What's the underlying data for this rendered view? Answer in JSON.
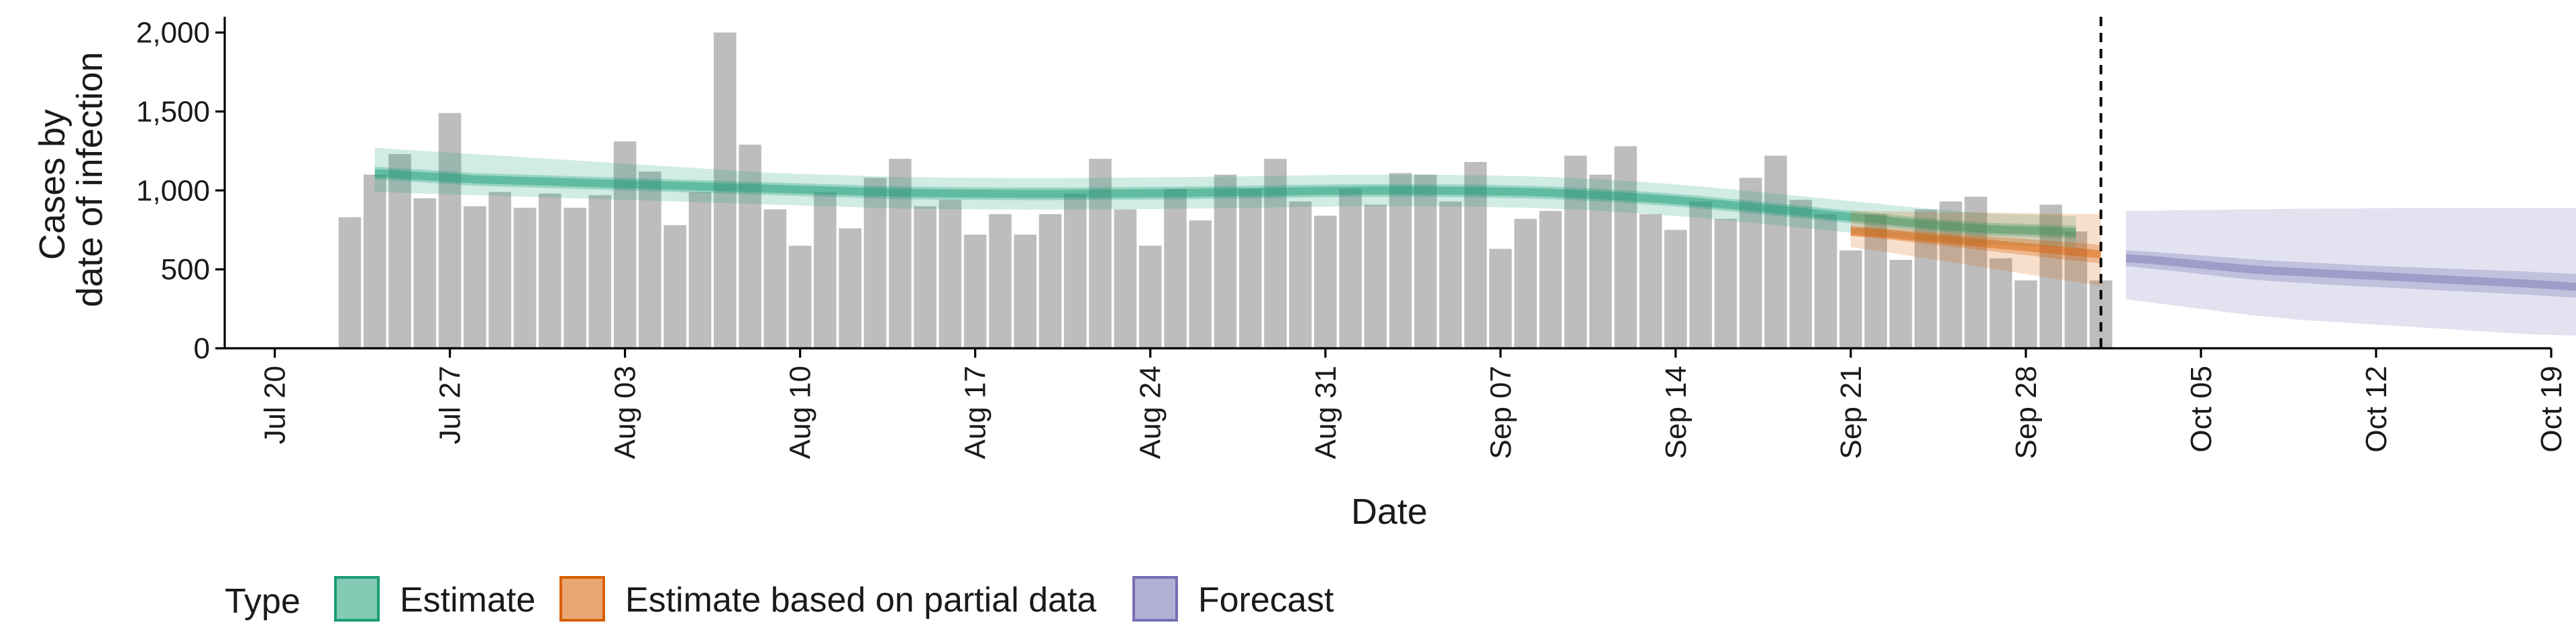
{
  "chart_data": {
    "type": "bar",
    "xlabel": "Date",
    "ylabel_lines": [
      "Cases by",
      "date of infection"
    ],
    "x_range": [
      "2020-07-18",
      "2020-10-19"
    ],
    "ylim": [
      0,
      2100
    ],
    "y_ticks": [
      0,
      500,
      1000,
      1500,
      2000
    ],
    "y_tick_labels": [
      "0",
      "500",
      "1,000",
      "1,500",
      "2,000"
    ],
    "x_ticks": [
      "2020-07-20",
      "2020-07-27",
      "2020-08-03",
      "2020-08-10",
      "2020-08-17",
      "2020-08-24",
      "2020-08-31",
      "2020-09-07",
      "2020-09-14",
      "2020-09-21",
      "2020-09-28",
      "2020-10-05",
      "2020-10-12",
      "2020-10-19"
    ],
    "x_tick_labels": [
      "Jul 20",
      "Jul 27",
      "Aug 03",
      "Aug 10",
      "Aug 17",
      "Aug 24",
      "Aug 31",
      "Sep 07",
      "Sep 14",
      "Sep 21",
      "Sep 28",
      "Oct 05",
      "Oct 12",
      "Oct 19"
    ],
    "grid": false,
    "legend_position": "bottom-left",
    "legend_title": "Type",
    "reference_line_date": "2020-10-01",
    "bar_color": "#bdbdbd",
    "bars": {
      "start_date": "2020-07-23",
      "values": [
        830,
        1100,
        1230,
        950,
        1490,
        900,
        990,
        890,
        980,
        890,
        970,
        1310,
        1120,
        780,
        990,
        2000,
        1290,
        880,
        650,
        990,
        760,
        1080,
        1200,
        900,
        940,
        720,
        850,
        720,
        850,
        980,
        1200,
        880,
        650,
        1010,
        810,
        1100,
        1010,
        1200,
        930,
        840,
        1010,
        910,
        1110,
        1100,
        930,
        1180,
        630,
        820,
        870,
        1220,
        1100,
        1280,
        850,
        750,
        930,
        820,
        1080,
        1220,
        940,
        850,
        620,
        850,
        560,
        880,
        930,
        960,
        570,
        430,
        910,
        740,
        430
      ]
    },
    "series": [
      {
        "name": "Estimate",
        "color": "#1b9e77",
        "start_date": "2020-07-24",
        "median": [
          1110,
          1100,
          1090,
          1080,
          1070,
          1065,
          1060,
          1055,
          1050,
          1045,
          1040,
          1035,
          1030,
          1025,
          1020,
          1015,
          1010,
          1005,
          1000,
          995,
          990,
          985,
          983,
          981,
          980,
          979,
          978,
          978,
          979,
          980,
          981,
          982,
          984,
          986,
          988,
          990,
          992,
          995,
          997,
          999,
          1000,
          1000,
          999,
          998,
          996,
          993,
          990,
          985,
          978,
          970,
          960,
          950,
          938,
          925,
          910,
          896,
          880,
          864,
          848,
          832,
          818,
          800,
          786,
          772,
          760,
          752,
          748,
          742,
          735
        ],
        "inner_lower": [
          1070,
          1060,
          1050,
          1040,
          1030,
          1025,
          1020,
          1015,
          1010,
          1005,
          1000,
          995,
          990,
          985,
          980,
          975,
          970,
          965,
          960,
          955,
          950,
          945,
          943,
          941,
          940,
          939,
          938,
          938,
          939,
          940,
          941,
          942,
          944,
          946,
          948,
          950,
          952,
          955,
          957,
          959,
          960,
          960,
          959,
          958,
          956,
          953,
          950,
          945,
          938,
          930,
          920,
          910,
          898,
          885,
          870,
          856,
          840,
          824,
          808,
          792,
          778,
          760,
          746,
          732,
          720,
          712,
          708,
          702,
          695
        ],
        "inner_upper": [
          1150,
          1140,
          1130,
          1120,
          1110,
          1105,
          1100,
          1095,
          1090,
          1085,
          1080,
          1075,
          1070,
          1065,
          1060,
          1055,
          1050,
          1045,
          1040,
          1035,
          1030,
          1025,
          1023,
          1021,
          1020,
          1019,
          1018,
          1018,
          1019,
          1020,
          1021,
          1022,
          1024,
          1026,
          1028,
          1030,
          1032,
          1035,
          1037,
          1039,
          1040,
          1040,
          1039,
          1038,
          1036,
          1033,
          1030,
          1025,
          1018,
          1010,
          1000,
          990,
          978,
          965,
          950,
          936,
          920,
          904,
          888,
          872,
          858,
          840,
          826,
          812,
          800,
          792,
          788,
          782,
          775
        ],
        "outer_lower": [
          990,
          985,
          980,
          975,
          970,
          965,
          960,
          955,
          950,
          945,
          940,
          935,
          930,
          925,
          920,
          915,
          910,
          905,
          900,
          895,
          890,
          885,
          883,
          881,
          880,
          879,
          878,
          878,
          879,
          880,
          881,
          882,
          884,
          886,
          888,
          890,
          892,
          895,
          897,
          899,
          900,
          900,
          899,
          898,
          896,
          893,
          890,
          885,
          878,
          870,
          860,
          850,
          838,
          825,
          810,
          796,
          780,
          764,
          748,
          732,
          718,
          700,
          686,
          672,
          660,
          652,
          648,
          642,
          635
        ],
        "outer_upper": [
          1270,
          1260,
          1250,
          1240,
          1230,
          1220,
          1210,
          1200,
          1190,
          1180,
          1170,
          1160,
          1150,
          1140,
          1130,
          1120,
          1110,
          1105,
          1100,
          1095,
          1090,
          1085,
          1083,
          1081,
          1080,
          1079,
          1078,
          1078,
          1079,
          1080,
          1081,
          1082,
          1084,
          1086,
          1088,
          1090,
          1092,
          1095,
          1097,
          1099,
          1100,
          1100,
          1099,
          1098,
          1096,
          1093,
          1090,
          1085,
          1078,
          1070,
          1060,
          1050,
          1038,
          1025,
          1010,
          996,
          980,
          964,
          948,
          932,
          918,
          900,
          886,
          872,
          860,
          852,
          848,
          842,
          835
        ]
      },
      {
        "name": "Estimate based on partial data",
        "color": "#d95f02",
        "start_date": "2020-09-21",
        "median": [
          740,
          730,
          715,
          700,
          685,
          670,
          655,
          640,
          625,
          610,
          595
        ],
        "inner_lower": [
          710,
          698,
          680,
          662,
          644,
          626,
          608,
          590,
          572,
          555,
          538
        ],
        "inner_upper": [
          775,
          765,
          752,
          740,
          728,
          716,
          704,
          692,
          680,
          668,
          655
        ],
        "outer_lower": [
          640,
          620,
          595,
          570,
          545,
          520,
          495,
          470,
          445,
          420,
          395
        ],
        "outer_upper": [
          870,
          868,
          866,
          864,
          862,
          860,
          858,
          856,
          854,
          852,
          850
        ]
      },
      {
        "name": "Forecast",
        "color": "#7570b3",
        "start_date": "2020-10-02",
        "median": [
          570,
          560,
          545,
          530,
          515,
          500,
          490,
          482,
          474,
          466,
          458,
          450,
          442,
          434,
          426,
          418,
          410,
          400,
          390
        ],
        "inner_lower": [
          520,
          505,
          488,
          470,
          452,
          436,
          424,
          414,
          404,
          396,
          388,
          380,
          372,
          364,
          356,
          348,
          340,
          330,
          320
        ],
        "inner_upper": [
          620,
          612,
          600,
          588,
          576,
          564,
          554,
          546,
          538,
          530,
          522,
          516,
          510,
          504,
          498,
          492,
          486,
          478,
          470
        ],
        "outer_lower": [
          310,
          290,
          270,
          250,
          230,
          210,
          195,
          180,
          170,
          160,
          150,
          140,
          130,
          120,
          110,
          100,
          90,
          85,
          80
        ],
        "outer_upper": [
          870,
          872,
          874,
          876,
          878,
          880,
          882,
          884,
          885,
          886,
          887,
          888,
          888,
          888,
          888,
          888,
          888,
          888,
          888
        ]
      }
    ]
  }
}
